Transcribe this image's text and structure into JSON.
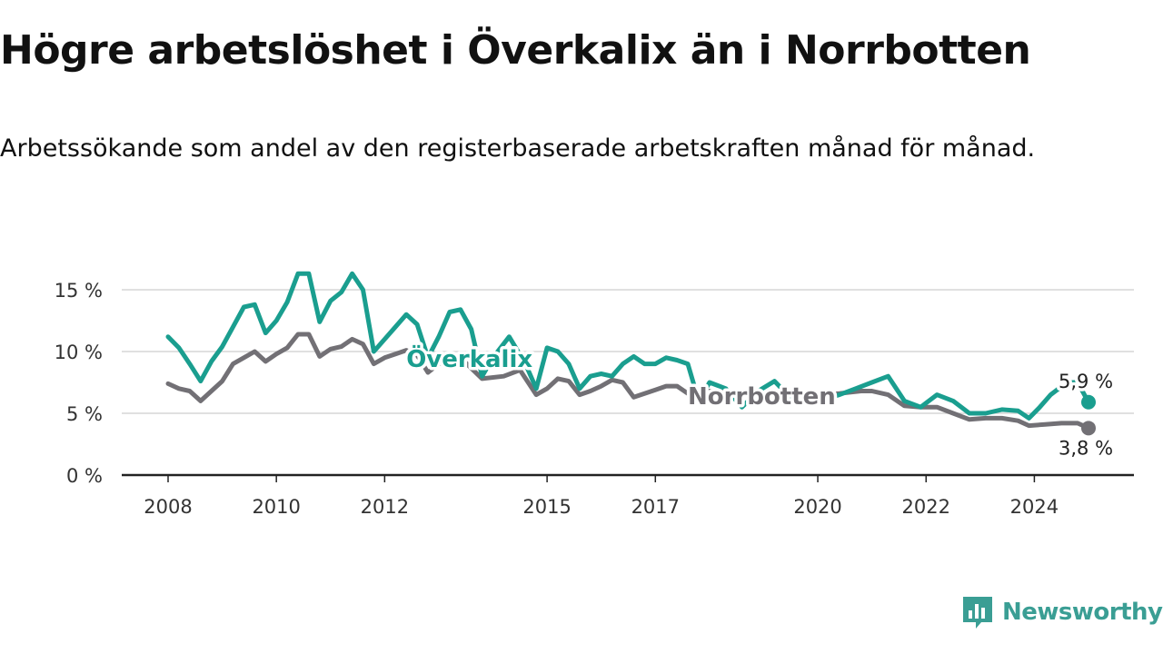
{
  "header": {
    "title": "Högre arbetslöshet i Överkalix än i Norrbotten",
    "subtitle": "Arbetssökande som andel av den registerbaserade arbetskraften månad för månad."
  },
  "brand": {
    "name": "Newsworthy",
    "color": "#3a9e94",
    "icon": "bar-chart-speech-bubble-icon"
  },
  "chart_data": {
    "type": "line",
    "ylim": [
      0,
      18
    ],
    "yticks": [
      0,
      5,
      10,
      15
    ],
    "ytick_labels": [
      "0 %",
      "5 %",
      "10 %",
      "15 %"
    ],
    "xticks": [
      2008,
      2010,
      2012,
      2015,
      2017,
      2020,
      2022,
      2024
    ],
    "xtick_labels": [
      "2008",
      "2010",
      "2012",
      "2015",
      "2017",
      "2020",
      "2022",
      "2024"
    ],
    "grid": true,
    "series": [
      {
        "name": "Överkalix",
        "color": "#1a9e8f",
        "end_label": "5,9 %",
        "points": [
          [
            2008.0,
            11.2
          ],
          [
            2008.2,
            10.3
          ],
          [
            2008.4,
            9.0
          ],
          [
            2008.6,
            7.6
          ],
          [
            2008.8,
            9.2
          ],
          [
            2009.0,
            10.4
          ],
          [
            2009.2,
            12.0
          ],
          [
            2009.4,
            13.6
          ],
          [
            2009.6,
            13.8
          ],
          [
            2009.8,
            11.5
          ],
          [
            2010.0,
            12.5
          ],
          [
            2010.2,
            14.0
          ],
          [
            2010.4,
            16.3
          ],
          [
            2010.6,
            16.3
          ],
          [
            2010.8,
            12.4
          ],
          [
            2011.0,
            14.1
          ],
          [
            2011.2,
            14.8
          ],
          [
            2011.4,
            16.3
          ],
          [
            2011.6,
            15.0
          ],
          [
            2011.8,
            10.0
          ],
          [
            2012.0,
            11.0
          ],
          [
            2012.2,
            12.0
          ],
          [
            2012.4,
            13.0
          ],
          [
            2012.6,
            12.2
          ],
          [
            2012.8,
            9.5
          ],
          [
            2013.0,
            11.2
          ],
          [
            2013.2,
            13.2
          ],
          [
            2013.4,
            13.4
          ],
          [
            2013.6,
            11.8
          ],
          [
            2013.8,
            8.0
          ],
          [
            2014.0,
            9.5
          ],
          [
            2014.3,
            11.2
          ],
          [
            2014.6,
            9.0
          ],
          [
            2014.8,
            7.0
          ],
          [
            2015.0,
            10.3
          ],
          [
            2015.2,
            10.0
          ],
          [
            2015.4,
            9.0
          ],
          [
            2015.6,
            7.0
          ],
          [
            2015.8,
            8.0
          ],
          [
            2016.0,
            8.2
          ],
          [
            2016.2,
            8.0
          ],
          [
            2016.4,
            9.0
          ],
          [
            2016.6,
            9.6
          ],
          [
            2016.8,
            9.0
          ],
          [
            2017.0,
            9.0
          ],
          [
            2017.2,
            9.5
          ],
          [
            2017.4,
            9.3
          ],
          [
            2017.6,
            9.0
          ],
          [
            2017.8,
            6.0
          ],
          [
            2018.0,
            7.5
          ],
          [
            2018.3,
            7.0
          ],
          [
            2018.6,
            5.5
          ],
          [
            2018.9,
            6.8
          ],
          [
            2019.2,
            7.6
          ],
          [
            2019.6,
            5.8
          ],
          [
            2020.0,
            6.0
          ],
          [
            2020.4,
            6.5
          ],
          [
            2020.7,
            7.0
          ],
          [
            2021.0,
            7.5
          ],
          [
            2021.3,
            8.0
          ],
          [
            2021.6,
            6.0
          ],
          [
            2021.9,
            5.5
          ],
          [
            2022.2,
            6.5
          ],
          [
            2022.5,
            6.0
          ],
          [
            2022.8,
            5.0
          ],
          [
            2023.1,
            5.0
          ],
          [
            2023.4,
            5.3
          ],
          [
            2023.7,
            5.2
          ],
          [
            2023.9,
            4.6
          ],
          [
            2024.1,
            5.5
          ],
          [
            2024.3,
            6.5
          ],
          [
            2024.6,
            7.5
          ],
          [
            2024.8,
            7.5
          ],
          [
            2025.0,
            5.9
          ]
        ]
      },
      {
        "name": "Norrbotten",
        "color": "#727075",
        "end_label": "3,8 %",
        "points": [
          [
            2008.0,
            7.4
          ],
          [
            2008.2,
            7.0
          ],
          [
            2008.4,
            6.8
          ],
          [
            2008.6,
            6.0
          ],
          [
            2008.8,
            6.8
          ],
          [
            2009.0,
            7.6
          ],
          [
            2009.2,
            9.0
          ],
          [
            2009.4,
            9.5
          ],
          [
            2009.6,
            10.0
          ],
          [
            2009.8,
            9.2
          ],
          [
            2010.0,
            9.8
          ],
          [
            2010.2,
            10.3
          ],
          [
            2010.4,
            11.4
          ],
          [
            2010.6,
            11.4
          ],
          [
            2010.8,
            9.6
          ],
          [
            2011.0,
            10.2
          ],
          [
            2011.2,
            10.4
          ],
          [
            2011.4,
            11.0
          ],
          [
            2011.6,
            10.6
          ],
          [
            2011.8,
            9.0
          ],
          [
            2012.0,
            9.5
          ],
          [
            2012.2,
            9.8
          ],
          [
            2012.4,
            10.1
          ],
          [
            2012.6,
            9.7
          ],
          [
            2012.8,
            8.3
          ],
          [
            2013.0,
            9.0
          ],
          [
            2013.4,
            9.5
          ],
          [
            2013.8,
            7.8
          ],
          [
            2014.2,
            8.0
          ],
          [
            2014.5,
            8.5
          ],
          [
            2014.8,
            6.5
          ],
          [
            2015.0,
            7.0
          ],
          [
            2015.2,
            7.8
          ],
          [
            2015.4,
            7.6
          ],
          [
            2015.6,
            6.5
          ],
          [
            2015.8,
            6.8
          ],
          [
            2016.0,
            7.2
          ],
          [
            2016.2,
            7.7
          ],
          [
            2016.4,
            7.5
          ],
          [
            2016.6,
            6.3
          ],
          [
            2016.8,
            6.6
          ],
          [
            2017.0,
            6.9
          ],
          [
            2017.2,
            7.2
          ],
          [
            2017.4,
            7.2
          ],
          [
            2017.6,
            6.6
          ],
          [
            2018.0,
            6.8
          ],
          [
            2019.0,
            6.5
          ],
          [
            2020.0,
            6.5
          ],
          [
            2020.4,
            6.6
          ],
          [
            2020.8,
            6.8
          ],
          [
            2021.0,
            6.8
          ],
          [
            2021.3,
            6.5
          ],
          [
            2021.6,
            5.6
          ],
          [
            2021.9,
            5.5
          ],
          [
            2022.2,
            5.5
          ],
          [
            2022.5,
            5.0
          ],
          [
            2022.8,
            4.5
          ],
          [
            2023.1,
            4.6
          ],
          [
            2023.4,
            4.6
          ],
          [
            2023.7,
            4.4
          ],
          [
            2023.9,
            4.0
          ],
          [
            2024.2,
            4.1
          ],
          [
            2024.5,
            4.2
          ],
          [
            2024.8,
            4.2
          ],
          [
            2025.0,
            3.8
          ]
        ]
      }
    ]
  }
}
